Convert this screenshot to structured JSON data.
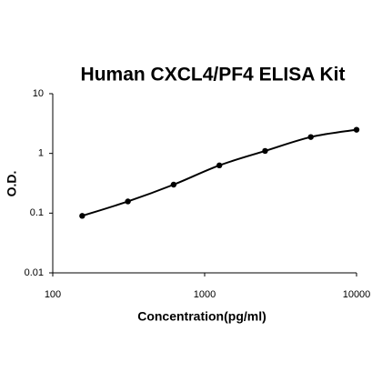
{
  "chart_data": {
    "type": "line",
    "title": "Human CXCL4/PF4 ELISA Kit",
    "x_label": "Concentration(pg/ml)",
    "y_label": "O.D.",
    "x": [
      156.25,
      312.5,
      625,
      1250,
      2500,
      5000,
      10000
    ],
    "series": [
      {
        "color": "#000000",
        "values": [
          0.09,
          0.157,
          0.3,
          0.63,
          1.1,
          1.88,
          2.49
        ]
      }
    ],
    "xlim": [
      100,
      10000
    ],
    "ylim": [
      0.01,
      10
    ],
    "xticks": [
      100,
      1000,
      10000
    ],
    "yticks": [
      0.01,
      0.1,
      1,
      10
    ],
    "xscale": "log",
    "yscale": "log"
  }
}
